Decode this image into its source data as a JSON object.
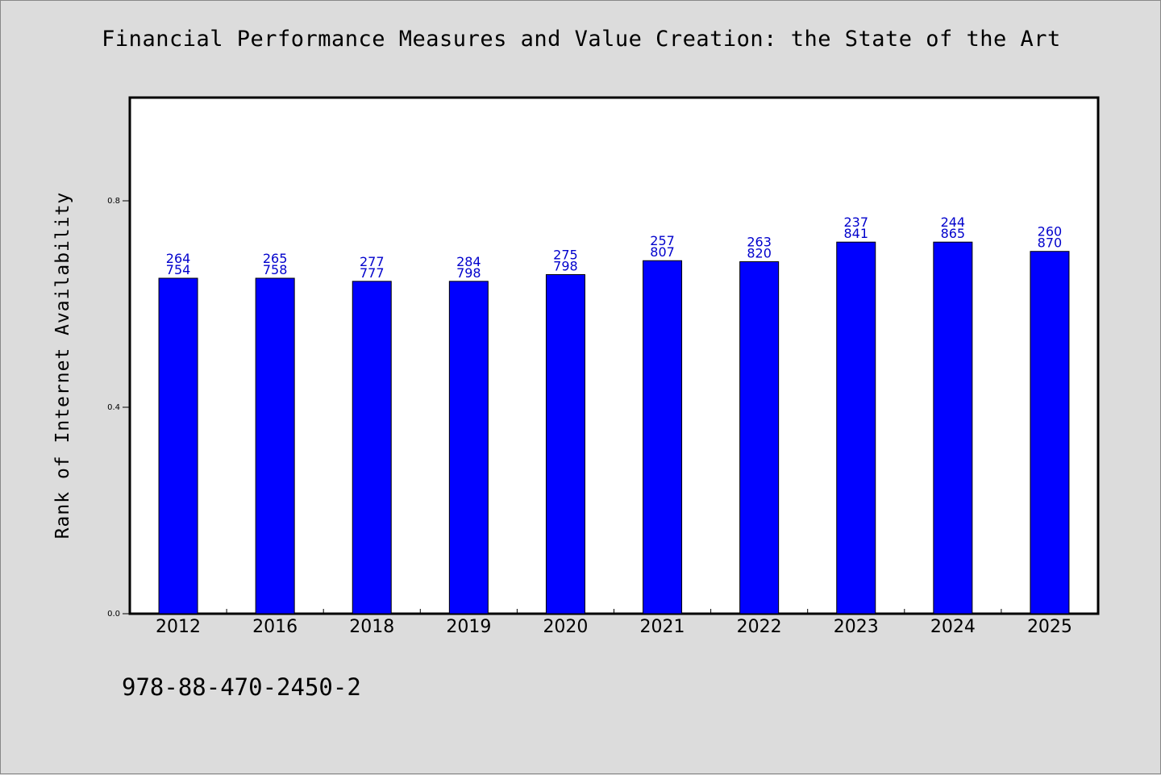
{
  "chart_data": {
    "type": "bar",
    "title": "Financial Performance Measures and Value Creation: the State of the Art",
    "ylabel": "Rank of Internet Availability",
    "xlabel": "",
    "ylim": [
      0,
      1.0
    ],
    "yticks": [
      0.0,
      0.4,
      0.8
    ],
    "ytick_labels": [
      "0.0",
      "0.4",
      "0.8"
    ],
    "categories": [
      "2012",
      "2016",
      "2018",
      "2019",
      "2020",
      "2021",
      "2022",
      "2023",
      "2024",
      "2025"
    ],
    "values": [
      0.65,
      0.65,
      0.644,
      0.644,
      0.657,
      0.684,
      0.682,
      0.72,
      0.72,
      0.702
    ],
    "data_labels": [
      [
        "264",
        "754"
      ],
      [
        "265",
        "758"
      ],
      [
        "277",
        "777"
      ],
      [
        "284",
        "798"
      ],
      [
        "275",
        "798"
      ],
      [
        "257",
        "807"
      ],
      [
        "263",
        "820"
      ],
      [
        "237",
        "841"
      ],
      [
        "244",
        "865"
      ],
      [
        "260",
        "870"
      ]
    ],
    "bar_color": "#0000ff",
    "label_color": "#0000cc",
    "grid": false,
    "legend": "none"
  },
  "footer": {
    "isbn": "978-88-470-2450-2"
  }
}
